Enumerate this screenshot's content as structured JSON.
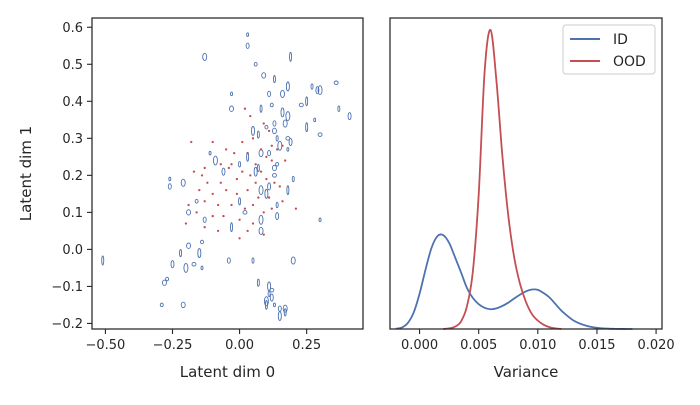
{
  "chart_data": [
    {
      "type": "scatter",
      "xlabel": "Latent dim 0",
      "ylabel": "Latent dim 1",
      "xlim": [
        -0.55,
        0.46
      ],
      "ylim": [
        -0.215,
        0.625
      ],
      "xticks": [
        {
          "value": -0.5,
          "label": "−0.50"
        },
        {
          "value": -0.25,
          "label": "−0.25"
        },
        {
          "value": 0.0,
          "label": "0.00"
        },
        {
          "value": 0.25,
          "label": "0.25"
        }
      ],
      "yticks": [
        {
          "value": -0.2,
          "label": "−0.2"
        },
        {
          "value": -0.1,
          "label": "−0.1"
        },
        {
          "value": 0.0,
          "label": "0.0"
        },
        {
          "value": 0.1,
          "label": "0.1"
        },
        {
          "value": 0.2,
          "label": "0.2"
        },
        {
          "value": 0.3,
          "label": "0.3"
        },
        {
          "value": 0.4,
          "label": "0.4"
        },
        {
          "value": 0.5,
          "label": "0.5"
        },
        {
          "value": 0.6,
          "label": "0.6"
        }
      ],
      "grid": false,
      "series": [
        {
          "color": "#4c72b0",
          "marker": "ellipse",
          "points": [
            [
              0.03,
              0.58
            ],
            [
              0.03,
              0.55
            ],
            [
              -0.13,
              0.52
            ],
            [
              0.19,
              0.52
            ],
            [
              0.06,
              0.5
            ],
            [
              0.09,
              0.47
            ],
            [
              0.13,
              0.46
            ],
            [
              0.18,
              0.44
            ],
            [
              0.36,
              0.45
            ],
            [
              0.27,
              0.44
            ],
            [
              0.29,
              0.43
            ],
            [
              0.3,
              0.43
            ],
            [
              -0.03,
              0.42
            ],
            [
              0.11,
              0.42
            ],
            [
              0.16,
              0.42
            ],
            [
              0.25,
              0.4
            ],
            [
              0.12,
              0.39
            ],
            [
              -0.03,
              0.38
            ],
            [
              0.08,
              0.38
            ],
            [
              0.16,
              0.37
            ],
            [
              0.23,
              0.39
            ],
            [
              0.37,
              0.38
            ],
            [
              0.41,
              0.36
            ],
            [
              0.18,
              0.36
            ],
            [
              0.28,
              0.35
            ],
            [
              0.13,
              0.34
            ],
            [
              0.17,
              0.34
            ],
            [
              0.25,
              0.33
            ],
            [
              0.1,
              0.33
            ],
            [
              0.13,
              0.32
            ],
            [
              0.07,
              0.31
            ],
            [
              0.05,
              0.32
            ],
            [
              0.3,
              0.31
            ],
            [
              0.14,
              0.3
            ],
            [
              0.19,
              0.29
            ],
            [
              0.15,
              0.28
            ],
            [
              0.18,
              0.27
            ],
            [
              0.11,
              0.26
            ],
            [
              0.08,
              0.26
            ],
            [
              0.03,
              0.25
            ],
            [
              0.14,
              0.23
            ],
            [
              0.13,
              0.22
            ],
            [
              0.07,
              0.22
            ],
            [
              0.06,
              0.21
            ],
            [
              0.13,
              0.2
            ],
            [
              0.2,
              0.19
            ],
            [
              0.11,
              0.17
            ],
            [
              0.08,
              0.16
            ],
            [
              -0.26,
              0.19
            ],
            [
              -0.26,
              0.17
            ],
            [
              -0.21,
              0.18
            ],
            [
              0.18,
              0.16
            ],
            [
              -0.16,
              0.13
            ],
            [
              -0.19,
              0.1
            ],
            [
              0.0,
              0.13
            ],
            [
              0.1,
              0.15
            ],
            [
              0.02,
              0.1
            ],
            [
              0.14,
              0.12
            ],
            [
              0.14,
              0.09
            ],
            [
              0.08,
              0.08
            ],
            [
              0.3,
              0.08
            ],
            [
              -0.13,
              0.08
            ],
            [
              0.08,
              0.05
            ],
            [
              -0.03,
              0.06
            ],
            [
              -0.14,
              0.02
            ],
            [
              -0.19,
              0.01
            ],
            [
              -0.22,
              -0.01
            ],
            [
              -0.15,
              -0.01
            ],
            [
              -0.17,
              -0.04
            ],
            [
              0.05,
              -0.03
            ],
            [
              -0.25,
              -0.04
            ],
            [
              -0.2,
              -0.05
            ],
            [
              -0.14,
              -0.05
            ],
            [
              -0.04,
              -0.03
            ],
            [
              0.2,
              -0.03
            ],
            [
              -0.51,
              -0.03
            ],
            [
              -0.27,
              -0.08
            ],
            [
              -0.28,
              -0.09
            ],
            [
              0.07,
              -0.09
            ],
            [
              0.11,
              -0.1
            ],
            [
              0.12,
              -0.11
            ],
            [
              0.11,
              -0.12
            ],
            [
              0.12,
              -0.13
            ],
            [
              0.1,
              -0.14
            ],
            [
              0.13,
              -0.15
            ],
            [
              0.15,
              -0.16
            ],
            [
              0.17,
              -0.16
            ],
            [
              0.1,
              -0.15
            ],
            [
              -0.29,
              -0.15
            ],
            [
              -0.21,
              -0.15
            ],
            [
              0.17,
              -0.17
            ],
            [
              0.15,
              -0.18
            ],
            [
              0.18,
              0.3
            ],
            [
              0.0,
              0.23
            ],
            [
              -0.06,
              0.21
            ],
            [
              -0.09,
              0.24
            ],
            [
              -0.11,
              0.26
            ]
          ]
        },
        {
          "color": "#c44e52",
          "marker": "dot",
          "points": [
            [
              0.02,
              0.38
            ],
            [
              0.04,
              0.36
            ],
            [
              0.09,
              0.34
            ],
            [
              0.11,
              0.32
            ],
            [
              0.05,
              0.3
            ],
            [
              0.01,
              0.29
            ],
            [
              -0.1,
              0.29
            ],
            [
              -0.18,
              0.29
            ],
            [
              0.12,
              0.28
            ],
            [
              0.16,
              0.28
            ],
            [
              0.08,
              0.27
            ],
            [
              0.03,
              0.26
            ],
            [
              -0.05,
              0.27
            ],
            [
              0.14,
              0.27
            ],
            [
              0.1,
              0.25
            ],
            [
              0.12,
              0.24
            ],
            [
              0.06,
              0.23
            ],
            [
              -0.03,
              0.23
            ],
            [
              -0.07,
              0.23
            ],
            [
              -0.13,
              0.22
            ],
            [
              -0.17,
              0.21
            ],
            [
              -0.14,
              0.2
            ],
            [
              -0.04,
              0.22
            ],
            [
              0.01,
              0.21
            ],
            [
              0.04,
              0.2
            ],
            [
              0.08,
              0.21
            ],
            [
              0.1,
              0.19
            ],
            [
              0.13,
              0.18
            ],
            [
              0.15,
              0.17
            ],
            [
              0.06,
              0.18
            ],
            [
              -0.01,
              0.19
            ],
            [
              -0.07,
              0.18
            ],
            [
              -0.12,
              0.18
            ],
            [
              -0.15,
              0.16
            ],
            [
              -0.1,
              0.15
            ],
            [
              -0.05,
              0.16
            ],
            [
              -0.01,
              0.15
            ],
            [
              0.03,
              0.16
            ],
            [
              0.07,
              0.14
            ],
            [
              0.11,
              0.14
            ],
            [
              0.16,
              0.13
            ],
            [
              -0.13,
              0.13
            ],
            [
              -0.08,
              0.12
            ],
            [
              -0.03,
              0.12
            ],
            [
              0.02,
              0.11
            ],
            [
              0.05,
              0.12
            ],
            [
              0.09,
              0.1
            ],
            [
              0.12,
              0.11
            ],
            [
              0.21,
              0.11
            ],
            [
              -0.16,
              0.1
            ],
            [
              -0.1,
              0.09
            ],
            [
              -0.06,
              0.09
            ],
            [
              0.0,
              0.08
            ],
            [
              0.05,
              0.07
            ],
            [
              -0.13,
              0.06
            ],
            [
              -0.08,
              0.05
            ],
            [
              0.03,
              0.05
            ],
            [
              0.09,
              0.04
            ],
            [
              0.0,
              0.03
            ],
            [
              -0.19,
              0.12
            ],
            [
              -0.2,
              0.07
            ],
            [
              0.17,
              0.24
            ],
            [
              -0.02,
              0.26
            ]
          ]
        }
      ]
    },
    {
      "type": "line",
      "xlabel": "Variance",
      "ylabel": "",
      "xlim": [
        -0.0025,
        0.0205
      ],
      "ylim": [
        0,
        1.04
      ],
      "xticks": [
        {
          "value": 0.0,
          "label": "0.000"
        },
        {
          "value": 0.005,
          "label": "0.005"
        },
        {
          "value": 0.01,
          "label": "0.010"
        },
        {
          "value": 0.015,
          "label": "0.015"
        },
        {
          "value": 0.02,
          "label": "0.020"
        }
      ],
      "yticks": [],
      "grid": false,
      "legend_position": "top-right",
      "series": [
        {
          "name": "ID",
          "color": "#4c72b0",
          "x": [
            -0.002,
            -0.0015,
            -0.001,
            -0.0005,
            0.0,
            0.0005,
            0.001,
            0.0015,
            0.002,
            0.0025,
            0.003,
            0.0035,
            0.004,
            0.0045,
            0.005,
            0.0055,
            0.006,
            0.0065,
            0.007,
            0.0075,
            0.008,
            0.0085,
            0.009,
            0.0095,
            0.01,
            0.0105,
            0.011,
            0.0115,
            0.012,
            0.0125,
            0.013,
            0.0135,
            0.014,
            0.0145,
            0.015,
            0.0155,
            0.016,
            0.0165,
            0.017,
            0.0175,
            0.018
          ],
          "y": [
            0.001,
            0.005,
            0.02,
            0.055,
            0.118,
            0.198,
            0.27,
            0.31,
            0.314,
            0.288,
            0.24,
            0.19,
            0.138,
            0.104,
            0.083,
            0.071,
            0.066,
            0.069,
            0.077,
            0.088,
            0.102,
            0.115,
            0.126,
            0.132,
            0.131,
            0.12,
            0.105,
            0.083,
            0.061,
            0.044,
            0.029,
            0.019,
            0.012,
            0.007,
            0.004,
            0.002,
            0.001,
            0.0005,
            0.0002,
            0.0001,
            0.0
          ]
        },
        {
          "name": "OOD",
          "color": "#c44e52",
          "x": [
            0.002,
            0.0025,
            0.003,
            0.0035,
            0.004,
            0.0045,
            0.005,
            0.0055,
            0.006,
            0.0065,
            0.007,
            0.0075,
            0.008,
            0.0085,
            0.009,
            0.0095,
            0.01,
            0.0105,
            0.011,
            0.0115,
            0.012
          ],
          "y": [
            0.0,
            0.002,
            0.008,
            0.025,
            0.075,
            0.19,
            0.45,
            0.86,
            1.0,
            0.83,
            0.58,
            0.38,
            0.24,
            0.15,
            0.09,
            0.05,
            0.028,
            0.014,
            0.006,
            0.002,
            0.0
          ]
        }
      ]
    }
  ]
}
